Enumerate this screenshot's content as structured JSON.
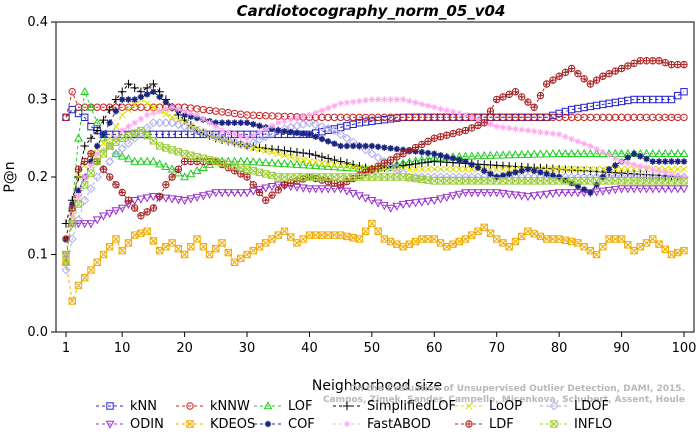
{
  "chart_data": {
    "type": "line",
    "title": "Cardiotocography_norm_05_v04",
    "xlabel": "Neighborhood size",
    "ylabel": "P@n",
    "xlim": [
      1,
      100
    ],
    "ylim": [
      0.0,
      0.4
    ],
    "xticks": [
      1,
      10,
      20,
      30,
      40,
      50,
      60,
      70,
      80,
      90,
      100
    ],
    "xtick_labels": [
      "1",
      "10",
      "20",
      "30",
      "40",
      "50",
      "60",
      "70",
      "80",
      "90",
      "100"
    ],
    "yticks": [
      0.0,
      0.1,
      0.2,
      0.3,
      0.4
    ],
    "ytick_labels": [
      "0.0",
      "0.1",
      "0.2",
      "0.3",
      "0.4"
    ],
    "grid": false,
    "legend_position": "bottom",
    "credit": [
      "Campos, Zimek, Sander, Campello, Micenkova, Schubert, Assent, Houle",
      "On the Evaluation of Unsupervised Outlier Detection, DAMI, 2015."
    ],
    "series": [
      {
        "name": "kNN",
        "color": "#2222cc",
        "marker": "square",
        "keypoints": [
          [
            1,
            0.277
          ],
          [
            2,
            0.287
          ],
          [
            4,
            0.277
          ],
          [
            5,
            0.265
          ],
          [
            7,
            0.255
          ],
          [
            10,
            0.255
          ],
          [
            20,
            0.255
          ],
          [
            30,
            0.255
          ],
          [
            40,
            0.255
          ],
          [
            44,
            0.262
          ],
          [
            48,
            0.27
          ],
          [
            55,
            0.277
          ],
          [
            70,
            0.277
          ],
          [
            78,
            0.277
          ],
          [
            82,
            0.287
          ],
          [
            88,
            0.295
          ],
          [
            92,
            0.3
          ],
          [
            98,
            0.3
          ],
          [
            100,
            0.31
          ]
        ]
      },
      {
        "name": "kNNW",
        "color": "#cc2222",
        "marker": "circle",
        "keypoints": [
          [
            1,
            0.277
          ],
          [
            2,
            0.31
          ],
          [
            3,
            0.29
          ],
          [
            5,
            0.29
          ],
          [
            20,
            0.29
          ],
          [
            25,
            0.285
          ],
          [
            30,
            0.28
          ],
          [
            40,
            0.277
          ],
          [
            50,
            0.277
          ],
          [
            60,
            0.277
          ],
          [
            70,
            0.277
          ],
          [
            80,
            0.277
          ],
          [
            90,
            0.277
          ],
          [
            100,
            0.277
          ]
        ]
      },
      {
        "name": "LOF",
        "color": "#22cc22",
        "marker": "triangle-up",
        "keypoints": [
          [
            1,
            0.09
          ],
          [
            2,
            0.16
          ],
          [
            3,
            0.25
          ],
          [
            4,
            0.31
          ],
          [
            5,
            0.29
          ],
          [
            7,
            0.25
          ],
          [
            9,
            0.23
          ],
          [
            12,
            0.22
          ],
          [
            15,
            0.22
          ],
          [
            18,
            0.21
          ],
          [
            20,
            0.2
          ],
          [
            25,
            0.22
          ],
          [
            30,
            0.22
          ],
          [
            40,
            0.215
          ],
          [
            50,
            0.21
          ],
          [
            60,
            0.225
          ],
          [
            70,
            0.228
          ],
          [
            80,
            0.23
          ],
          [
            90,
            0.23
          ],
          [
            100,
            0.23
          ]
        ]
      },
      {
        "name": "SimplifiedLOF",
        "color": "#000000",
        "marker": "plus",
        "keypoints": [
          [
            1,
            0.14
          ],
          [
            2,
            0.17
          ],
          [
            3,
            0.2
          ],
          [
            4,
            0.24
          ],
          [
            6,
            0.26
          ],
          [
            9,
            0.3
          ],
          [
            11,
            0.32
          ],
          [
            13,
            0.31
          ],
          [
            15,
            0.32
          ],
          [
            17,
            0.3
          ],
          [
            19,
            0.28
          ],
          [
            22,
            0.26
          ],
          [
            25,
            0.25
          ],
          [
            30,
            0.24
          ],
          [
            40,
            0.23
          ],
          [
            50,
            0.21
          ],
          [
            60,
            0.22
          ],
          [
            70,
            0.215
          ],
          [
            80,
            0.21
          ],
          [
            90,
            0.205
          ],
          [
            100,
            0.2
          ]
        ]
      },
      {
        "name": "LoOP",
        "color": "#dddd00",
        "marker": "x",
        "keypoints": [
          [
            1,
            0.1
          ],
          [
            2,
            0.15
          ],
          [
            3,
            0.2
          ],
          [
            5,
            0.23
          ],
          [
            8,
            0.25
          ],
          [
            10,
            0.28
          ],
          [
            13,
            0.3
          ],
          [
            16,
            0.285
          ],
          [
            20,
            0.27
          ],
          [
            25,
            0.25
          ],
          [
            30,
            0.24
          ],
          [
            40,
            0.22
          ],
          [
            50,
            0.21
          ],
          [
            60,
            0.21
          ],
          [
            70,
            0.21
          ],
          [
            80,
            0.21
          ],
          [
            90,
            0.21
          ],
          [
            100,
            0.21
          ]
        ]
      },
      {
        "name": "LDOF",
        "color": "#aaaaee",
        "marker": "diamond",
        "keypoints": [
          [
            1,
            0.08
          ],
          [
            2,
            0.12
          ],
          [
            4,
            0.17
          ],
          [
            6,
            0.2
          ],
          [
            9,
            0.23
          ],
          [
            12,
            0.25
          ],
          [
            15,
            0.27
          ],
          [
            18,
            0.27
          ],
          [
            22,
            0.26
          ],
          [
            26,
            0.25
          ],
          [
            30,
            0.24
          ],
          [
            35,
            0.26
          ],
          [
            40,
            0.27
          ],
          [
            44,
            0.26
          ],
          [
            48,
            0.24
          ],
          [
            52,
            0.22
          ],
          [
            56,
            0.2
          ],
          [
            60,
            0.2
          ],
          [
            70,
            0.2
          ],
          [
            80,
            0.2
          ],
          [
            90,
            0.2
          ],
          [
            100,
            0.2
          ]
        ]
      },
      {
        "name": "ODIN",
        "color": "#9933cc",
        "marker": "triangle-down",
        "keypoints": [
          [
            1,
            0.1
          ],
          [
            2,
            0.14
          ],
          [
            5,
            0.14
          ],
          [
            7,
            0.15
          ],
          [
            10,
            0.16
          ],
          [
            12,
            0.17
          ],
          [
            15,
            0.175
          ],
          [
            20,
            0.17
          ],
          [
            25,
            0.18
          ],
          [
            30,
            0.18
          ],
          [
            35,
            0.19
          ],
          [
            40,
            0.185
          ],
          [
            45,
            0.185
          ],
          [
            50,
            0.17
          ],
          [
            53,
            0.16
          ],
          [
            55,
            0.165
          ],
          [
            60,
            0.17
          ],
          [
            65,
            0.18
          ],
          [
            70,
            0.18
          ],
          [
            75,
            0.175
          ],
          [
            80,
            0.18
          ],
          [
            85,
            0.18
          ],
          [
            90,
            0.185
          ],
          [
            95,
            0.185
          ],
          [
            100,
            0.185
          ]
        ]
      },
      {
        "name": "KDEOS",
        "color": "#eeaa00",
        "marker": "square-x",
        "keypoints": [
          [
            1,
            0.09
          ],
          [
            2,
            0.04
          ],
          [
            3,
            0.06
          ],
          [
            5,
            0.08
          ],
          [
            7,
            0.1
          ],
          [
            9,
            0.12
          ],
          [
            10,
            0.105
          ],
          [
            12,
            0.125
          ],
          [
            14,
            0.13
          ],
          [
            16,
            0.105
          ],
          [
            18,
            0.115
          ],
          [
            20,
            0.1
          ],
          [
            22,
            0.12
          ],
          [
            24,
            0.1
          ],
          [
            26,
            0.115
          ],
          [
            28,
            0.09
          ],
          [
            30,
            0.1
          ],
          [
            32,
            0.11
          ],
          [
            34,
            0.12
          ],
          [
            36,
            0.13
          ],
          [
            38,
            0.115
          ],
          [
            40,
            0.125
          ],
          [
            45,
            0.125
          ],
          [
            48,
            0.12
          ],
          [
            50,
            0.14
          ],
          [
            52,
            0.12
          ],
          [
            55,
            0.11
          ],
          [
            58,
            0.12
          ],
          [
            60,
            0.12
          ],
          [
            62,
            0.11
          ],
          [
            65,
            0.12
          ],
          [
            68,
            0.135
          ],
          [
            70,
            0.12
          ],
          [
            72,
            0.11
          ],
          [
            75,
            0.13
          ],
          [
            78,
            0.12
          ],
          [
            80,
            0.12
          ],
          [
            83,
            0.115
          ],
          [
            86,
            0.1
          ],
          [
            88,
            0.12
          ],
          [
            90,
            0.12
          ],
          [
            92,
            0.105
          ],
          [
            95,
            0.12
          ],
          [
            98,
            0.1
          ],
          [
            100,
            0.105
          ]
        ]
      },
      {
        "name": "COF",
        "color": "#1a237e",
        "marker": "asterisk",
        "keypoints": [
          [
            1,
            0.12
          ],
          [
            2,
            0.165
          ],
          [
            4,
            0.2
          ],
          [
            6,
            0.24
          ],
          [
            8,
            0.27
          ],
          [
            10,
            0.3
          ],
          [
            12,
            0.3
          ],
          [
            15,
            0.31
          ],
          [
            18,
            0.29
          ],
          [
            20,
            0.28
          ],
          [
            25,
            0.27
          ],
          [
            30,
            0.27
          ],
          [
            35,
            0.26
          ],
          [
            40,
            0.255
          ],
          [
            45,
            0.24
          ],
          [
            50,
            0.24
          ],
          [
            55,
            0.235
          ],
          [
            60,
            0.23
          ],
          [
            65,
            0.22
          ],
          [
            70,
            0.2
          ],
          [
            75,
            0.21
          ],
          [
            80,
            0.2
          ],
          [
            85,
            0.18
          ],
          [
            88,
            0.21
          ],
          [
            92,
            0.23
          ],
          [
            95,
            0.22
          ],
          [
            100,
            0.22
          ]
        ]
      },
      {
        "name": "FastABOD",
        "color": "#ffaaee",
        "marker": "star",
        "keypoints": [
          [
            1,
            0.1
          ],
          [
            2,
            0.15
          ],
          [
            4,
            0.2
          ],
          [
            6,
            0.23
          ],
          [
            8,
            0.24
          ],
          [
            10,
            0.26
          ],
          [
            14,
            0.28
          ],
          [
            18,
            0.29
          ],
          [
            22,
            0.28
          ],
          [
            26,
            0.26
          ],
          [
            30,
            0.25
          ],
          [
            35,
            0.27
          ],
          [
            40,
            0.28
          ],
          [
            45,
            0.295
          ],
          [
            50,
            0.3
          ],
          [
            55,
            0.3
          ],
          [
            60,
            0.29
          ],
          [
            65,
            0.28
          ],
          [
            70,
            0.265
          ],
          [
            75,
            0.26
          ],
          [
            80,
            0.255
          ],
          [
            85,
            0.24
          ],
          [
            90,
            0.22
          ],
          [
            95,
            0.21
          ],
          [
            100,
            0.2
          ]
        ]
      },
      {
        "name": "LDF",
        "color": "#aa2222",
        "marker": "circle-plus",
        "keypoints": [
          [
            1,
            0.12
          ],
          [
            2,
            0.16
          ],
          [
            3,
            0.21
          ],
          [
            5,
            0.23
          ],
          [
            7,
            0.21
          ],
          [
            9,
            0.19
          ],
          [
            11,
            0.17
          ],
          [
            13,
            0.15
          ],
          [
            15,
            0.16
          ],
          [
            17,
            0.19
          ],
          [
            20,
            0.22
          ],
          [
            25,
            0.22
          ],
          [
            30,
            0.2
          ],
          [
            33,
            0.17
          ],
          [
            36,
            0.19
          ],
          [
            40,
            0.2
          ],
          [
            45,
            0.19
          ],
          [
            50,
            0.21
          ],
          [
            55,
            0.23
          ],
          [
            60,
            0.25
          ],
          [
            65,
            0.26
          ],
          [
            68,
            0.27
          ],
          [
            70,
            0.3
          ],
          [
            73,
            0.31
          ],
          [
            76,
            0.29
          ],
          [
            78,
            0.32
          ],
          [
            80,
            0.33
          ],
          [
            82,
            0.34
          ],
          [
            85,
            0.32
          ],
          [
            87,
            0.33
          ],
          [
            90,
            0.34
          ],
          [
            93,
            0.35
          ],
          [
            96,
            0.35
          ],
          [
            98,
            0.345
          ],
          [
            100,
            0.345
          ]
        ]
      },
      {
        "name": "INFLO",
        "color": "#99cc33",
        "marker": "square-x",
        "keypoints": [
          [
            1,
            0.1
          ],
          [
            2,
            0.14
          ],
          [
            4,
            0.19
          ],
          [
            6,
            0.22
          ],
          [
            8,
            0.24
          ],
          [
            10,
            0.25
          ],
          [
            13,
            0.26
          ],
          [
            16,
            0.24
          ],
          [
            20,
            0.23
          ],
          [
            25,
            0.22
          ],
          [
            30,
            0.21
          ],
          [
            35,
            0.2
          ],
          [
            40,
            0.2
          ],
          [
            45,
            0.2
          ],
          [
            50,
            0.2
          ],
          [
            55,
            0.2
          ],
          [
            60,
            0.195
          ],
          [
            70,
            0.195
          ],
          [
            80,
            0.195
          ],
          [
            90,
            0.195
          ],
          [
            100,
            0.195
          ]
        ]
      }
    ]
  }
}
